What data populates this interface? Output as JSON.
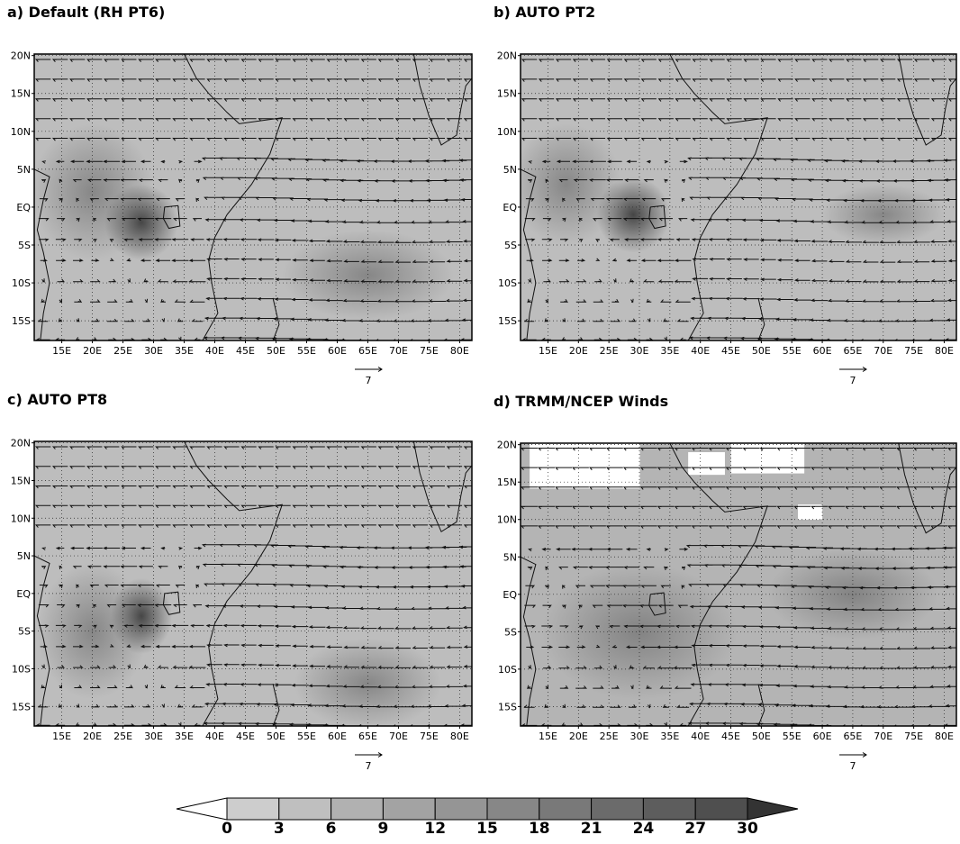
{
  "panels": [
    {
      "title": "a) Default (RH PT6)",
      "lat_labels": [
        "20N",
        "15N",
        "10N",
        "5N",
        "EQ",
        "5S",
        "10S",
        "15S"
      ],
      "lon_labels": [
        "15E",
        "20E",
        "25E",
        "30E",
        "35E",
        "40E",
        "45E",
        "50E",
        "55E",
        "60E",
        "65E",
        "70E",
        "75E",
        "80E"
      ],
      "ref_label": "7"
    },
    {
      "title": "b) AUTO PT2",
      "lat_labels": [
        "20N",
        "15N",
        "10N",
        "5N",
        "EQ",
        "5S",
        "10S",
        "15S"
      ],
      "lon_labels": [
        "15E",
        "20E",
        "25E",
        "30E",
        "35E",
        "40E",
        "45E",
        "50E",
        "55E",
        "60E",
        "65E",
        "70E",
        "75E",
        "80E"
      ],
      "ref_label": "7"
    },
    {
      "title": "c) AUTO PT8",
      "lat_labels": [
        "20N",
        "15N",
        "10N",
        "5N",
        "EQ",
        "5S",
        "10S",
        "15S"
      ],
      "lon_labels": [
        "15E",
        "20E",
        "25E",
        "30E",
        "35E",
        "40E",
        "45E",
        "50E",
        "55E",
        "60E",
        "65E",
        "70E",
        "75E",
        "80E"
      ],
      "ref_label": "7"
    },
    {
      "title": "d) TRMM/NCEP Winds",
      "lat_labels": [
        "20N",
        "15N",
        "10N",
        "5N",
        "EQ",
        "5S",
        "10S",
        "15S"
      ],
      "lon_labels": [
        "15E",
        "20E",
        "25E",
        "30E",
        "35E",
        "40E",
        "45E",
        "50E",
        "55E",
        "60E",
        "65E",
        "70E",
        "75E",
        "80E"
      ],
      "ref_label": "7"
    }
  ],
  "colorbar": {
    "labels": [
      "0",
      "3",
      "6",
      "9",
      "12",
      "15",
      "18",
      "21",
      "24",
      "27",
      "30"
    ]
  }
}
